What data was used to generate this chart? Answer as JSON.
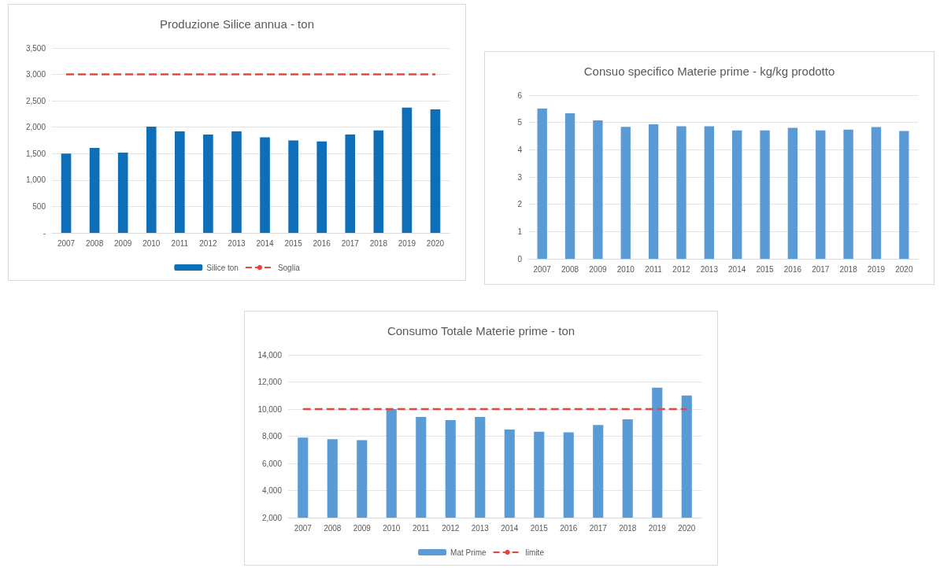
{
  "chart_data": [
    {
      "type": "bar",
      "title": "Produzione Silice annua - ton",
      "categories": [
        "2007",
        "2008",
        "2009",
        "2010",
        "2011",
        "2012",
        "2013",
        "2014",
        "2015",
        "2016",
        "2017",
        "2018",
        "2019",
        "2020"
      ],
      "series": [
        {
          "name": "Silice ton",
          "color": "#0e6eb8",
          "values": [
            1500,
            1610,
            1520,
            2010,
            1920,
            1860,
            1920,
            1810,
            1750,
            1730,
            1860,
            1940,
            2370,
            2340
          ]
        },
        {
          "name": "Soglia",
          "type": "line",
          "color": "#e8453c",
          "line_style": "dashed",
          "marker": "none",
          "values": [
            3000,
            3000,
            3000,
            3000,
            3000,
            3000,
            3000,
            3000,
            3000,
            3000,
            3000,
            3000,
            3000,
            3000
          ]
        }
      ],
      "ylim": [
        0,
        3500
      ],
      "yticks": [
        {
          "value": 0,
          "label": "-"
        },
        {
          "value": 500,
          "label": "500"
        },
        {
          "value": 1000,
          "label": "1,000"
        },
        {
          "value": 1500,
          "label": "1,500"
        },
        {
          "value": 2000,
          "label": "2,000"
        },
        {
          "value": 2500,
          "label": "2,500"
        },
        {
          "value": 3000,
          "label": "3,000"
        },
        {
          "value": 3500,
          "label": "3,500"
        }
      ],
      "grid": "y",
      "legend": "bottom"
    },
    {
      "type": "bar",
      "title": "Consuo specifico Materie prime - kg/kg prodotto",
      "categories": [
        "2007",
        "2008",
        "2009",
        "2010",
        "2011",
        "2012",
        "2013",
        "2014",
        "2015",
        "2016",
        "2017",
        "2018",
        "2019",
        "2020"
      ],
      "series": [
        {
          "color": "#5b9bd5",
          "values": [
            5.51,
            5.34,
            5.08,
            4.84,
            4.93,
            4.86,
            4.86,
            4.71,
            4.71,
            4.8,
            4.71,
            4.74,
            4.83,
            4.69
          ]
        }
      ],
      "ylim": [
        0,
        6
      ],
      "yticks": [
        0,
        1,
        2,
        3,
        4,
        5,
        6
      ],
      "grid": "y"
    },
    {
      "type": "bar",
      "title": "Consumo Totale Materie prime - ton",
      "categories": [
        "2007",
        "2008",
        "2009",
        "2010",
        "2011",
        "2012",
        "2013",
        "2014",
        "2015",
        "2016",
        "2017",
        "2018",
        "2019",
        "2020"
      ],
      "series": [
        {
          "name": "Mat Prime",
          "color": "#5b9bd5",
          "values": [
            7900,
            7780,
            7710,
            10000,
            9420,
            9190,
            9420,
            8490,
            8330,
            8290,
            8820,
            9250,
            11580,
            11000
          ]
        },
        {
          "name": "limite",
          "type": "line",
          "color": "#e8453c",
          "line_style": "dashed",
          "marker": "none",
          "values": [
            10000,
            10000,
            10000,
            10000,
            10000,
            10000,
            10000,
            10000,
            10000,
            10000,
            10000,
            10000,
            10000,
            10000
          ]
        }
      ],
      "ylim": [
        2000,
        14000
      ],
      "yticks": [
        {
          "value": 2000,
          "label": "2,000"
        },
        {
          "value": 4000,
          "label": "4,000"
        },
        {
          "value": 6000,
          "label": "6,000"
        },
        {
          "value": 8000,
          "label": "8,000"
        },
        {
          "value": 10000,
          "label": "10,000"
        },
        {
          "value": 12000,
          "label": "12,000"
        },
        {
          "value": 14000,
          "label": "14,000"
        }
      ],
      "grid": "y",
      "legend": "bottom"
    }
  ]
}
